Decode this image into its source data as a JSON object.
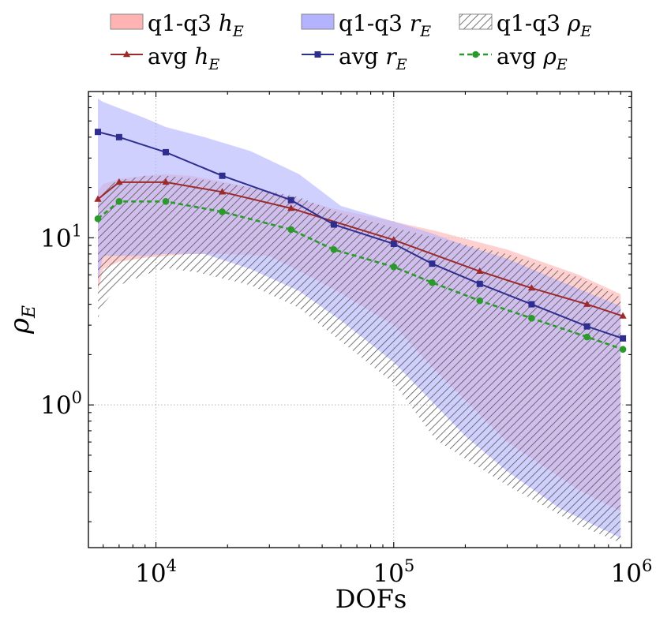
{
  "chart_data": {
    "type": "area",
    "x_scale": "log",
    "y_scale": "log",
    "xlim": [
      5200,
      1000000
    ],
    "ylim": [
      0.14,
      75
    ],
    "xlabel": "DOFs",
    "ylabel": "ρ_E",
    "x_ticks": [
      {
        "value": 10000,
        "base": "10",
        "exp": "4"
      },
      {
        "value": 100000,
        "base": "10",
        "exp": "5"
      },
      {
        "value": 1000000,
        "base": "10",
        "exp": "6"
      }
    ],
    "y_ticks": [
      {
        "value": 1,
        "base": "10",
        "exp": "0"
      },
      {
        "value": 10,
        "base": "10",
        "exp": "1"
      }
    ],
    "grid": true,
    "legend_position": "top",
    "legend": [
      {
        "prefix": "q1-q3 ",
        "var": "h",
        "sub": "E",
        "kind": "band",
        "key": "h"
      },
      {
        "prefix": "q1-q3 ",
        "var": "r",
        "sub": "E",
        "kind": "band",
        "key": "r"
      },
      {
        "prefix": "q1-q3 ",
        "var": "ρ",
        "sub": "E",
        "kind": "band",
        "key": "rho"
      },
      {
        "prefix": "avg ",
        "var": "h",
        "sub": "E",
        "kind": "line",
        "key": "h"
      },
      {
        "prefix": "avg ",
        "var": "r",
        "sub": "E",
        "kind": "line",
        "key": "r"
      },
      {
        "prefix": "avg ",
        "var": "ρ",
        "sub": "E",
        "kind": "line",
        "key": "rho"
      }
    ],
    "bands": [
      {
        "key": "h",
        "fill": "#ffb3b3",
        "x": [
          5700,
          6000,
          7000,
          9000,
          11000,
          14000,
          18000,
          30000,
          55000,
          100000,
          150000,
          300000,
          600000,
          900000
        ],
        "lower": [
          4.8,
          6.5,
          7.2,
          7.6,
          7.8,
          8.0,
          8.0,
          7.8,
          5.0,
          3.0,
          1.6,
          0.6,
          0.31,
          0.23
        ],
        "upper": [
          19.0,
          21.0,
          22.5,
          23.5,
          24.0,
          23.5,
          22.0,
          19.0,
          15.0,
          12.5,
          11.0,
          8.5,
          6.0,
          4.6
        ]
      },
      {
        "key": "r",
        "fill": "#b3b3ff",
        "x": [
          5700,
          6000,
          9000,
          11000,
          16000,
          25000,
          40000,
          60000,
          100000,
          140000,
          200000,
          300000,
          500000,
          900000
        ],
        "lower": [
          5.5,
          7.8,
          7.8,
          8.0,
          8.0,
          6.5,
          4.8,
          3.2,
          1.8,
          1.1,
          0.65,
          0.4,
          0.24,
          0.16
        ],
        "upper": [
          68.0,
          65.0,
          52.0,
          46.0,
          40.0,
          33.0,
          24.0,
          15.5,
          12.5,
          10.8,
          9.0,
          7.5,
          5.5,
          3.9
        ]
      },
      {
        "key": "rho",
        "fill": "#bdbdbd",
        "x": [
          5700,
          6000,
          7000,
          9000,
          11000,
          15000,
          25000,
          40000,
          60000,
          100000,
          150000,
          300000,
          600000,
          900000
        ],
        "lower": [
          3.3,
          4.0,
          5.2,
          6.0,
          6.6,
          6.2,
          5.2,
          3.8,
          2.4,
          1.35,
          0.62,
          0.33,
          0.19,
          0.15
        ],
        "upper": [
          17.0,
          20.0,
          22.0,
          23.5,
          23.5,
          22.5,
          20.0,
          17.5,
          14.0,
          11.5,
          10.0,
          8.0,
          5.8,
          4.4
        ]
      }
    ],
    "series": [
      {
        "name": "avg h_E",
        "key": "h",
        "color": "#9c2a2a",
        "marker": "triangle",
        "dashed": false,
        "x": [
          5700,
          7000,
          11000,
          19000,
          37000,
          100000,
          230000,
          380000,
          650000,
          920000
        ],
        "y": [
          17.0,
          21.5,
          21.5,
          18.8,
          15.0,
          9.7,
          6.3,
          5.0,
          4.0,
          3.4
        ]
      },
      {
        "name": "avg r_E",
        "key": "r",
        "color": "#2e2e90",
        "marker": "square",
        "dashed": false,
        "x": [
          5700,
          7000,
          11000,
          19000,
          37000,
          56000,
          100000,
          145000,
          230000,
          380000,
          650000,
          920000
        ],
        "y": [
          43.0,
          40.0,
          32.5,
          23.5,
          16.8,
          12.0,
          9.2,
          7.0,
          5.3,
          4.0,
          2.95,
          2.5
        ]
      },
      {
        "name": "avg ρ_E",
        "key": "rho",
        "color": "#2a9a2a",
        "marker": "circle",
        "dashed": true,
        "x": [
          5700,
          7000,
          11000,
          19000,
          37000,
          56000,
          100000,
          145000,
          230000,
          380000,
          650000,
          920000
        ],
        "y": [
          13.0,
          16.5,
          16.5,
          14.3,
          11.2,
          8.5,
          6.7,
          5.4,
          4.2,
          3.3,
          2.55,
          2.15
        ]
      }
    ]
  }
}
